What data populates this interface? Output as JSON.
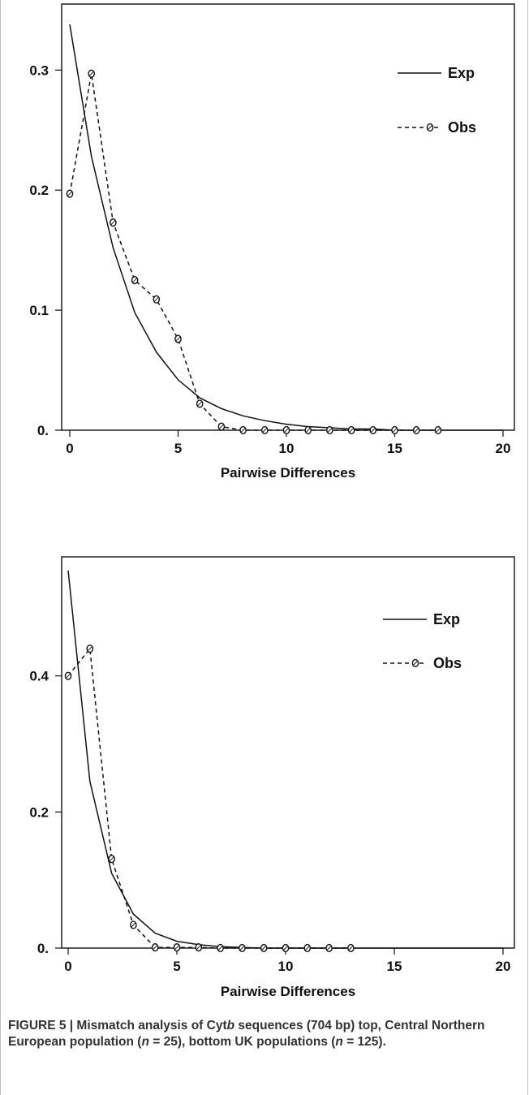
{
  "charts": [
    {
      "id": "top",
      "chart_data": {
        "type": "line",
        "title": "",
        "xlabel": "Pairwise Differences",
        "ylabel": "",
        "xlim": [
          0,
          20
        ],
        "ylim": [
          0,
          0.355
        ],
        "x_ticks": [
          0,
          5,
          10,
          15,
          20
        ],
        "y_ticks": [
          {
            "value": 0,
            "label": "0."
          },
          {
            "value": 0.1,
            "label": "0.1"
          },
          {
            "value": 0.2,
            "label": "0.2"
          },
          {
            "value": 0.3,
            "label": "0.3"
          }
        ],
        "grid": false,
        "legend_position": "top-right",
        "series": [
          {
            "name": "Exp",
            "style": "solid",
            "marker": "none",
            "x": [
              0,
              1,
              2,
              3,
              4,
              5,
              6,
              7,
              8,
              9,
              10,
              11,
              12,
              13,
              14,
              15,
              16,
              17,
              18,
              19,
              20
            ],
            "values": [
              0.338,
              0.228,
              0.152,
              0.098,
              0.065,
              0.042,
              0.027,
              0.018,
              0.012,
              0.008,
              0.005,
              0.003,
              0.002,
              0.001,
              0.001,
              0.0,
              0.0,
              0.0,
              0.0,
              0.0,
              0.0
            ]
          },
          {
            "name": "Obs",
            "style": "dashed",
            "marker": "circle",
            "x": [
              0,
              1,
              2,
              3,
              4,
              5,
              6,
              7,
              8,
              9,
              10,
              11,
              12,
              13,
              14,
              15,
              16,
              17
            ],
            "values": [
              0.197,
              0.297,
              0.173,
              0.125,
              0.109,
              0.076,
              0.022,
              0.003,
              0.0,
              0.0,
              0.0,
              0.0,
              0.0,
              0.0,
              0.0,
              0.0,
              0.0,
              0.0
            ]
          }
        ]
      }
    },
    {
      "id": "bottom",
      "chart_data": {
        "type": "line",
        "title": "",
        "xlabel": "Pairwise Differences",
        "ylabel": "",
        "xlim": [
          0,
          20
        ],
        "ylim": [
          0,
          0.575
        ],
        "x_ticks": [
          0,
          5,
          10,
          15,
          20
        ],
        "y_ticks": [
          {
            "value": 0,
            "label": "0."
          },
          {
            "value": 0.2,
            "label": "0.2"
          },
          {
            "value": 0.4,
            "label": "0.4"
          }
        ],
        "grid": false,
        "legend_position": "top-right",
        "series": [
          {
            "name": "Exp",
            "style": "solid",
            "marker": "none",
            "x": [
              0,
              1,
              2,
              3,
              4,
              5,
              6,
              7,
              8,
              9,
              10,
              11,
              12,
              13,
              14,
              15,
              16,
              17,
              18,
              19,
              20
            ],
            "values": [
              0.555,
              0.245,
              0.11,
              0.05,
              0.022,
              0.01,
              0.005,
              0.002,
              0.001,
              0.0,
              0.0,
              0.0,
              0.0,
              0.0,
              0.0,
              0.0,
              0.0,
              0.0,
              0.0,
              0.0,
              0.0
            ]
          },
          {
            "name": "Obs",
            "style": "dashed",
            "marker": "circle",
            "x": [
              0,
              1,
              2,
              3,
              4,
              5,
              6,
              7,
              8,
              9,
              10,
              11,
              12,
              13
            ],
            "values": [
              0.4,
              0.44,
              0.131,
              0.034,
              0.001,
              0.001,
              0.001,
              0.0,
              0.0,
              0.0,
              0.0,
              0.0,
              0.0,
              0.0
            ]
          }
        ]
      }
    }
  ],
  "caption": {
    "prefix": "FIGURE 5 | Mismatch analysis of Cyt",
    "italic_b": "b",
    "part2": " sequences (704 bp) top, Central Northern European population (",
    "n1_symbol": "n",
    "n1_value": " = 25), bottom UK populations (",
    "n2_symbol": "n",
    "n2_value": " = 125)."
  },
  "colors": {
    "line": "#111111",
    "axis": "#111111",
    "caption_text": "#333333"
  }
}
